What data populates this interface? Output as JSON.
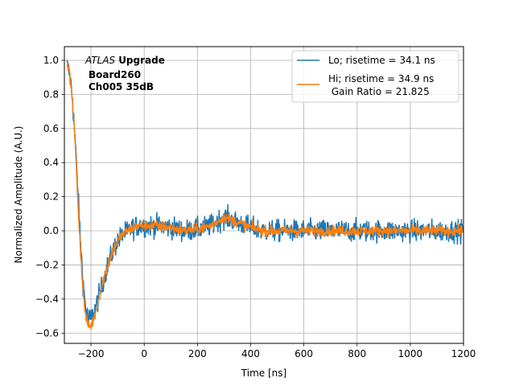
{
  "chart_data": {
    "type": "line",
    "xlabel": "Time [ns]",
    "ylabel": "Normalized Amplitude (A.U.)",
    "xlim": [
      -300,
      1200
    ],
    "ylim": [
      -0.66,
      1.08
    ],
    "xticks": [
      -200,
      0,
      200,
      400,
      600,
      800,
      1000,
      1200
    ],
    "xtick_labels": [
      "−200",
      "0",
      "200",
      "400",
      "600",
      "800",
      "1000",
      "1200"
    ],
    "yticks": [
      -0.6,
      -0.4,
      -0.2,
      0.0,
      0.2,
      0.4,
      0.6,
      0.8,
      1.0
    ],
    "ytick_labels": [
      "−0.6",
      "−0.4",
      "−0.2",
      "0.0",
      "0.2",
      "0.4",
      "0.6",
      "0.8",
      "1.0"
    ],
    "grid": true,
    "annotation": {
      "experiment": "ATLAS",
      "tag": "Upgrade",
      "board": "Board260",
      "channel": "Ch005 35dB"
    },
    "legend": {
      "location": "top-right",
      "entries": [
        "Lo; risetime = 34.1 ns",
        "Hi; risetime = 34.9 ns",
        " Gain Ratio = 21.825"
      ]
    },
    "series": [
      {
        "name": "Lo",
        "color": "#1f77b4",
        "noise": 0.045,
        "x": [
          -290,
          -280,
          -270,
          -260,
          -250,
          -240,
          -230,
          -220,
          -210,
          -200,
          -190,
          -180,
          -170,
          -160,
          -150,
          -140,
          -130,
          -120,
          -110,
          -100,
          -80,
          -60,
          -40,
          -20,
          0,
          50,
          100,
          150,
          200,
          250,
          280,
          300,
          320,
          350,
          400,
          450,
          500,
          600,
          700,
          800,
          900,
          1000,
          1100,
          1200
        ],
        "values": [
          0.97,
          0.92,
          0.78,
          0.55,
          0.25,
          -0.05,
          -0.3,
          -0.45,
          -0.52,
          -0.51,
          -0.48,
          -0.44,
          -0.38,
          -0.33,
          -0.27,
          -0.22,
          -0.17,
          -0.13,
          -0.09,
          -0.06,
          -0.02,
          0.0,
          0.02,
          0.03,
          0.03,
          0.03,
          0.02,
          0.0,
          0.01,
          0.03,
          0.06,
          0.08,
          0.07,
          0.05,
          0.02,
          0.0,
          0.0,
          0.0,
          0.0,
          0.0,
          0.0,
          0.0,
          0.0,
          0.0
        ]
      },
      {
        "name": "Hi",
        "color": "#ff7f0e",
        "noise": 0.022,
        "x": [
          -290,
          -280,
          -270,
          -260,
          -250,
          -240,
          -230,
          -220,
          -210,
          -200,
          -190,
          -180,
          -170,
          -160,
          -150,
          -140,
          -130,
          -120,
          -110,
          -100,
          -80,
          -60,
          -40,
          -20,
          0,
          50,
          100,
          150,
          200,
          250,
          280,
          300,
          320,
          350,
          400,
          450,
          500,
          600,
          700,
          800,
          900,
          1000,
          1100,
          1200
        ],
        "values": [
          0.98,
          0.92,
          0.78,
          0.53,
          0.2,
          -0.1,
          -0.35,
          -0.5,
          -0.56,
          -0.56,
          -0.52,
          -0.46,
          -0.39,
          -0.33,
          -0.27,
          -0.22,
          -0.17,
          -0.13,
          -0.09,
          -0.06,
          -0.02,
          0.0,
          0.02,
          0.03,
          0.03,
          0.03,
          0.02,
          0.0,
          0.01,
          0.03,
          0.06,
          0.08,
          0.07,
          0.05,
          0.02,
          0.0,
          0.0,
          0.0,
          0.0,
          0.0,
          0.0,
          0.0,
          0.0,
          0.0
        ]
      }
    ]
  }
}
